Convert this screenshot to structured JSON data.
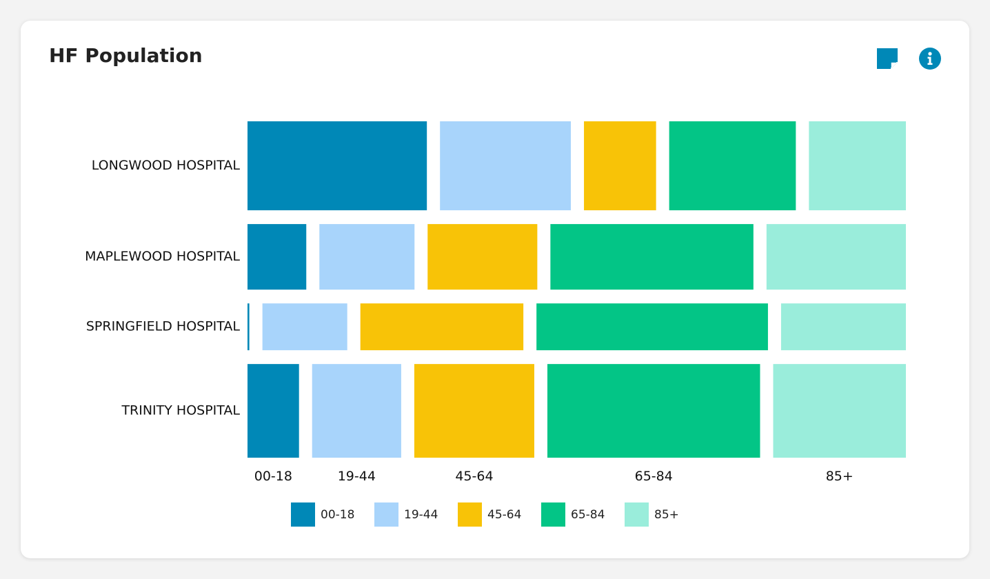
{
  "card": {
    "title": "HF Population",
    "icons": [
      {
        "name": "sticky-note-icon",
        "color": "#0088b7"
      },
      {
        "name": "info-icon",
        "color": "#0088b7"
      }
    ]
  },
  "chart_data": {
    "type": "marimekko",
    "title": "HF Population",
    "categories": [
      "LONGWOOD HOSPITAL",
      "MAPLEWOOD HOSPITAL",
      "SPRINGFIELD HOSPITAL",
      "TRINITY HOSPITAL"
    ],
    "category_share": [
      0.19,
      0.14,
      0.1,
      0.2
    ],
    "series": [
      {
        "name": "00-18",
        "color": "#0088b7",
        "values": [
          29.6,
          9.7,
          0.3,
          8.5
        ]
      },
      {
        "name": "19-44",
        "color": "#a8d4fb",
        "values": [
          21.6,
          15.7,
          14.0,
          14.7
        ]
      },
      {
        "name": "45-64",
        "color": "#f8c307",
        "values": [
          11.9,
          18.1,
          26.9,
          19.8
        ]
      },
      {
        "name": "65-84",
        "color": "#03c586",
        "values": [
          20.9,
          33.5,
          38.2,
          35.1
        ]
      },
      {
        "name": "85+",
        "color": "#9aeddb",
        "values": [
          16.0,
          23.0,
          20.6,
          21.9
        ]
      }
    ],
    "x_tick_labels": [
      "00-18",
      "19-44",
      "45-64",
      "65-84",
      "85+"
    ],
    "legend": {
      "position": "bottom",
      "items": [
        "00-18",
        "19-44",
        "45-64",
        "65-84",
        "85+"
      ]
    }
  }
}
